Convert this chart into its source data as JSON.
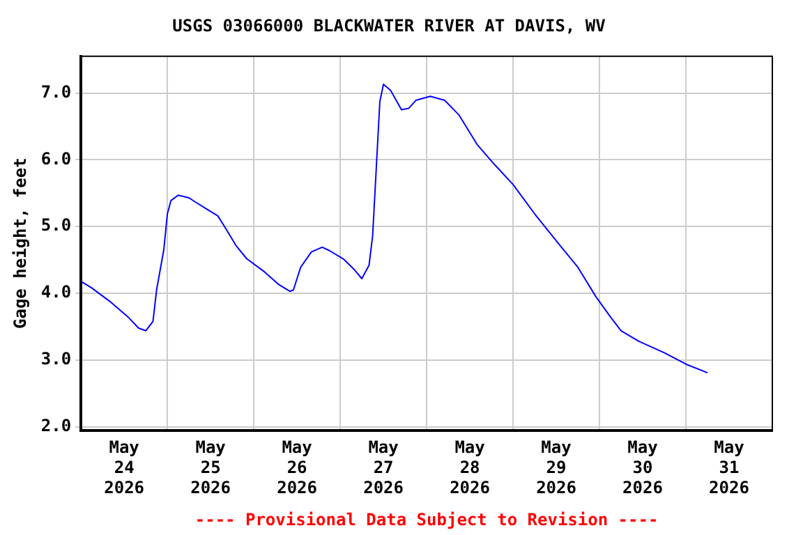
{
  "chart_data": {
    "type": "line",
    "title": "USGS 03066000 BLACKWATER RIVER AT DAVIS, WV",
    "ylabel": "Gage height, feet",
    "annotations": [
      "---- Provisional Data Subject to Revision ----"
    ],
    "x": [
      "2026-05-24T00:00",
      "2026-05-24T03:00",
      "2026-05-24T08:00",
      "2026-05-24T13:00",
      "2026-05-24T16:00",
      "2026-05-24T18:00",
      "2026-05-24T20:00",
      "2026-05-24T21:00",
      "2026-05-24T23:00",
      "2026-05-25T00:00",
      "2026-05-25T01:00",
      "2026-05-25T03:00",
      "2026-05-25T06:00",
      "2026-05-25T08:00",
      "2026-05-25T11:00",
      "2026-05-25T14:00",
      "2026-05-25T16:00",
      "2026-05-25T19:00",
      "2026-05-25T22:00",
      "2026-05-26T03:00",
      "2026-05-26T07:00",
      "2026-05-26T10:00",
      "2026-05-26T11:00",
      "2026-05-26T13:00",
      "2026-05-26T16:00",
      "2026-05-26T19:00",
      "2026-05-26T21:00",
      "2026-05-27T01:00",
      "2026-05-27T04:00",
      "2026-05-27T06:00",
      "2026-05-27T08:00",
      "2026-05-27T09:00",
      "2026-05-27T10:00",
      "2026-05-27T11:00",
      "2026-05-27T12:00",
      "2026-05-27T14:00",
      "2026-05-27T17:00",
      "2026-05-27T19:00",
      "2026-05-27T21:00",
      "2026-05-28T01:00",
      "2026-05-28T05:00",
      "2026-05-28T09:00",
      "2026-05-28T14:00",
      "2026-05-28T19:00",
      "2026-05-29T00:00",
      "2026-05-29T06:00",
      "2026-05-29T13:00",
      "2026-05-29T18:00",
      "2026-05-29T23:00",
      "2026-05-30T03:00",
      "2026-05-30T06:00",
      "2026-05-30T11:00",
      "2026-05-30T18:00",
      "2026-05-31T00:00",
      "2026-05-31T06:00"
    ],
    "series": [
      {
        "color": "#0000ff",
        "values": [
          4.18,
          4.08,
          3.88,
          3.65,
          3.48,
          3.44,
          3.58,
          4.05,
          4.65,
          5.19,
          5.39,
          5.47,
          5.43,
          5.36,
          5.26,
          5.16,
          4.99,
          4.72,
          4.52,
          4.32,
          4.13,
          4.03,
          4.05,
          4.39,
          4.62,
          4.69,
          4.64,
          4.51,
          4.35,
          4.22,
          4.42,
          4.86,
          5.86,
          6.87,
          7.13,
          7.04,
          6.75,
          6.77,
          6.89,
          6.95,
          6.89,
          6.67,
          6.23,
          5.92,
          5.63,
          5.19,
          4.72,
          4.39,
          3.95,
          3.65,
          3.44,
          3.28,
          3.11,
          2.94,
          2.81
        ]
      }
    ],
    "xlim": [
      "2026-05-24T00:00",
      "2026-06-01T00:00"
    ],
    "xticks": [
      {
        "value": "2026-05-24T12:00",
        "label": "May\n24\n2026"
      },
      {
        "value": "2026-05-25T00:00",
        "label": null
      },
      {
        "value": "2026-05-25T12:00",
        "label": "May\n25\n2026"
      },
      {
        "value": "2026-05-26T00:00",
        "label": null
      },
      {
        "value": "2026-05-26T12:00",
        "label": "May\n26\n2026"
      },
      {
        "value": "2026-05-27T00:00",
        "label": null
      },
      {
        "value": "2026-05-27T12:00",
        "label": "May\n27\n2026"
      },
      {
        "value": "2026-05-28T00:00",
        "label": null
      },
      {
        "value": "2026-05-28T12:00",
        "label": "May\n28\n2026"
      },
      {
        "value": "2026-05-29T00:00",
        "label": null
      },
      {
        "value": "2026-05-29T12:00",
        "label": "May\n29\n2026"
      },
      {
        "value": "2026-05-30T00:00",
        "label": null
      },
      {
        "value": "2026-05-30T12:00",
        "label": "May\n30\n2026"
      },
      {
        "value": "2026-05-31T00:00",
        "label": null
      },
      {
        "value": "2026-05-31T12:00",
        "label": "May\n31\n2026"
      }
    ],
    "ylim": [
      1.95,
      7.55
    ],
    "yticks": [
      {
        "value": 2,
        "label": "2.0"
      },
      {
        "value": 3,
        "label": "3.0"
      },
      {
        "value": 4,
        "label": "4.0"
      },
      {
        "value": 5,
        "label": "5.0"
      },
      {
        "value": 6,
        "label": "6.0"
      },
      {
        "value": 7,
        "label": "7.0"
      }
    ],
    "grid": true,
    "marker": "none",
    "line_style": "solid"
  }
}
